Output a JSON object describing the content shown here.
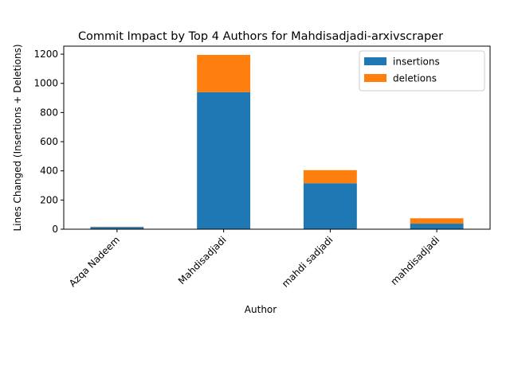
{
  "chart_data": {
    "type": "bar",
    "stacked": true,
    "title": "Commit Impact by Top 4 Authors for Mahdisadjadi-arxivscraper",
    "xlabel": "Author",
    "ylabel": "Lines Changed (Insertions + Deletions)",
    "categories": [
      "Azqa Nadeem",
      "Mahdisadjadi",
      "mahdi sadjadi",
      "mahdisadjadi"
    ],
    "series": [
      {
        "name": "insertions",
        "values": [
          15,
          940,
          315,
          38
        ],
        "color": "#1f77b4"
      },
      {
        "name": "deletions",
        "values": [
          2,
          255,
          90,
          37
        ],
        "color": "#ff7f0e"
      }
    ],
    "ylim": [
      0,
      1255
    ],
    "yticks": [
      0,
      200,
      400,
      600,
      800,
      1000,
      1200
    ],
    "grid": false,
    "legend_position": "top-right"
  }
}
